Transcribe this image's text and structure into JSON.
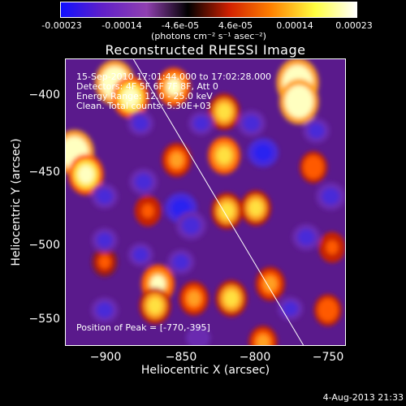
{
  "colorbar": {
    "tick_labels": [
      "-0.00023",
      "-0.00014",
      "-4.6e-05",
      "4.6e-05",
      "0.00014",
      "0.00023"
    ],
    "units": "(photons cm⁻² s⁻¹ asec⁻²)",
    "range": [
      -0.00023,
      0.00023
    ],
    "colors": [
      "#1010ff",
      "#6020c8",
      "#9040b0",
      "#000000",
      "#d02000",
      "#ff8000",
      "#ffff40",
      "#ffffff"
    ]
  },
  "info": {
    "line1": "15-Sep-2010 17:01:44.000 to 17:02:28.000",
    "line2": "Detectors: 4F 5F 6F 7F 8F, Att 0",
    "line3": "Energy Range: 12.0 - 25.0 keV",
    "line4": "Clean. Total counts: 5.30E+03",
    "peak": "Position of Peak = [-770,-395]"
  },
  "footer": {
    "date": "4-Aug-2013 21:33"
  },
  "chart_data": {
    "type": "heatmap",
    "title": "Reconstructed RHESSI Image",
    "xlabel": "Heliocentric X (arcsec)",
    "ylabel": "Heliocentric Y (arcsec)",
    "xlim": [
      -932,
      -738
    ],
    "ylim": [
      -572,
      -376
    ],
    "xticks": [
      -900,
      -850,
      -800,
      -750
    ],
    "yticks": [
      -400,
      -450,
      -500,
      -550
    ],
    "xtick_labels": [
      "−900",
      "−850",
      "−800",
      "−750"
    ],
    "ytick_labels": [
      "−400",
      "−450",
      "−500",
      "−550"
    ],
    "limb_line": {
      "from": [
        -885,
        -376
      ],
      "to": [
        -767,
        -572
      ]
    },
    "peak_position": [
      -770,
      -395
    ],
    "blobs": [
      {
        "x": -771,
        "y": -392,
        "value": 0.00023
      },
      {
        "x": -770,
        "y": -405,
        "value": 0.0002
      },
      {
        "x": -898,
        "y": -392,
        "value": 0.0002
      },
      {
        "x": -887,
        "y": -402,
        "value": 0.00017
      },
      {
        "x": -926,
        "y": -440,
        "value": 0.0002
      },
      {
        "x": -918,
        "y": -455,
        "value": 0.00016
      },
      {
        "x": -857,
        "y": -395,
        "value": 0.00014
      },
      {
        "x": -822,
        "y": -412,
        "value": 0.00012
      },
      {
        "x": -822,
        "y": -442,
        "value": 0.00013
      },
      {
        "x": -855,
        "y": -445,
        "value": 0.0001
      },
      {
        "x": -820,
        "y": -480,
        "value": 0.00012
      },
      {
        "x": -800,
        "y": -478,
        "value": 0.00011
      },
      {
        "x": -868,
        "y": -530,
        "value": 0.00014
      },
      {
        "x": -870,
        "y": -545,
        "value": 0.00012
      },
      {
        "x": -843,
        "y": -540,
        "value": 0.0001
      },
      {
        "x": -817,
        "y": -540,
        "value": 0.00012
      },
      {
        "x": -790,
        "y": -530,
        "value": 0.0001
      },
      {
        "x": -795,
        "y": -570,
        "value": 9e-05
      },
      {
        "x": -875,
        "y": -480,
        "value": 7e-05
      },
      {
        "x": -905,
        "y": -515,
        "value": 6e-05
      },
      {
        "x": -760,
        "y": -450,
        "value": 8e-05
      },
      {
        "x": -747,
        "y": -505,
        "value": 7e-05
      },
      {
        "x": -750,
        "y": -548,
        "value": 8e-05
      },
      {
        "x": -905,
        "y": -470,
        "value": -0.0001
      },
      {
        "x": -878,
        "y": -460,
        "value": -0.00012
      },
      {
        "x": -852,
        "y": -478,
        "value": -0.00018
      },
      {
        "x": -845,
        "y": -490,
        "value": -0.00015
      },
      {
        "x": -795,
        "y": -440,
        "value": -0.00016
      },
      {
        "x": -803,
        "y": -420,
        "value": -0.00012
      },
      {
        "x": -758,
        "y": -425,
        "value": -0.0001
      },
      {
        "x": -748,
        "y": -470,
        "value": -0.00014
      },
      {
        "x": -765,
        "y": -498,
        "value": -0.00012
      },
      {
        "x": -852,
        "y": -515,
        "value": -0.0001
      },
      {
        "x": -905,
        "y": -500,
        "value": -9e-05
      },
      {
        "x": -905,
        "y": -548,
        "value": -0.00011
      },
      {
        "x": -880,
        "y": -420,
        "value": -9e-05
      },
      {
        "x": -880,
        "y": -510,
        "value": -8e-05
      },
      {
        "x": -776,
        "y": -547,
        "value": -8e-05
      },
      {
        "x": -838,
        "y": -420,
        "value": -8e-05
      },
      {
        "x": -840,
        "y": -567,
        "value": -7e-05
      }
    ]
  }
}
